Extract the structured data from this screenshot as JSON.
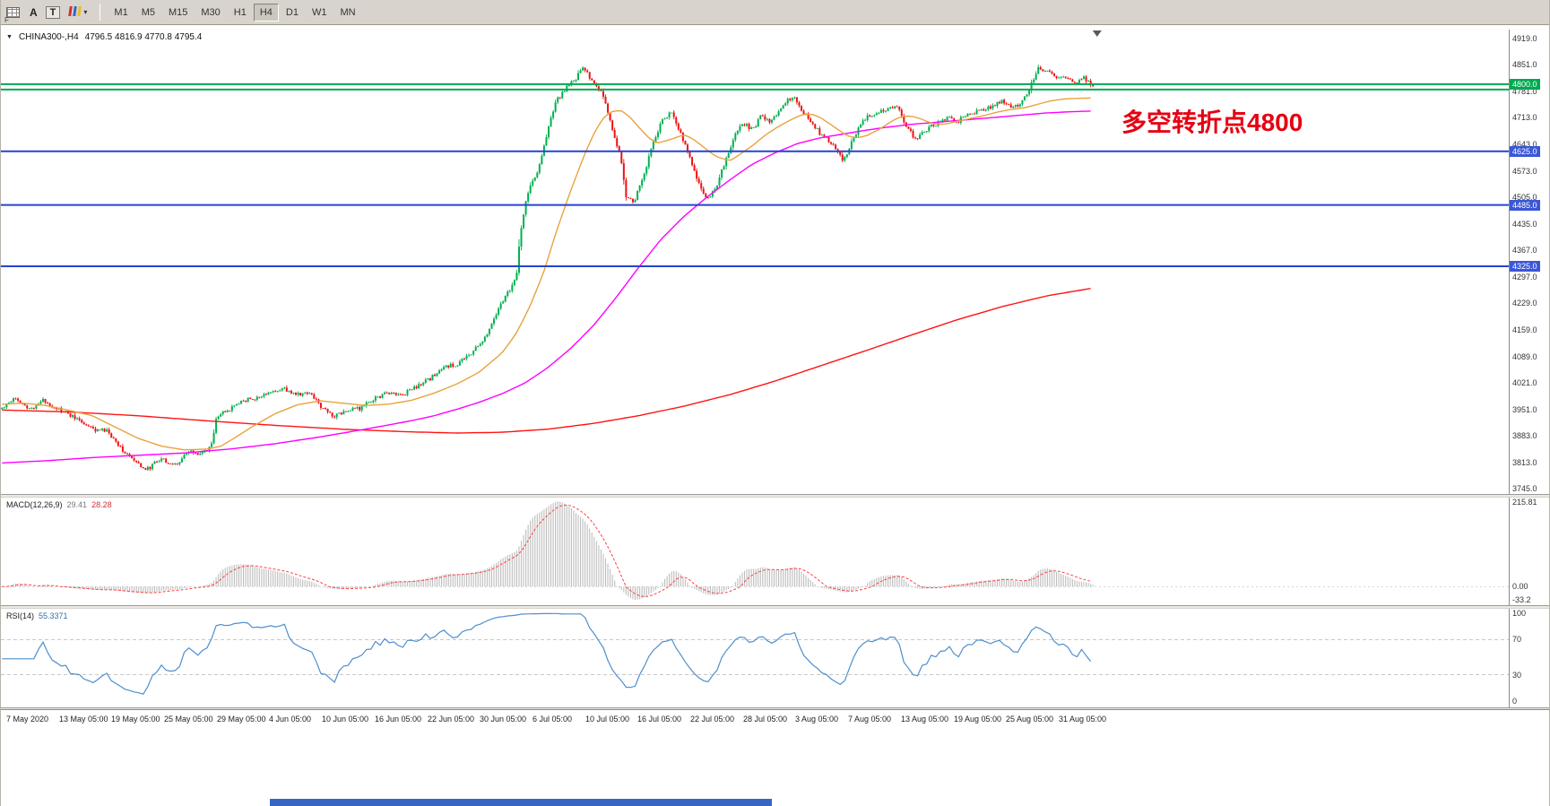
{
  "window": {
    "bottom_strip_color": "#3566c4"
  },
  "icons": {
    "chart_marker": "▼",
    "dropdown_caret": "▾"
  },
  "toolbar": {
    "f_label": "F",
    "a_label": "A",
    "t_label": "T",
    "timeframes": [
      "M1",
      "M5",
      "M15",
      "M30",
      "H1",
      "H4",
      "D1",
      "W1",
      "MN"
    ],
    "active_timeframe": "H4"
  },
  "main_chart": {
    "title": "CHINA300-,H4",
    "ohlc": "4796.5 4816.9 4770.8 4795.4",
    "annotation": "多空转折点4800",
    "annotation_color": "#e60012",
    "axis_min": 3745,
    "axis_max": 4919,
    "price_axis_labels": [
      "4919.0",
      "4851.0",
      "4781.0",
      "4713.0",
      "4643.0",
      "4573.0",
      "4505.0",
      "4435.0",
      "4367.0",
      "4297.0",
      "4229.0",
      "4159.0",
      "4089.0",
      "4021.0",
      "3951.0",
      "3883.0",
      "3813.0",
      "3745.0"
    ],
    "hlines": [
      {
        "price": 4800,
        "color": "#00a84f",
        "boxed": true,
        "label": "4800.0",
        "box_color": "#00a84f"
      },
      {
        "price": 4786,
        "color": "#00a84f",
        "boxed": false,
        "label": "",
        "box_color": ""
      },
      {
        "price": 4625,
        "color": "#2743d0",
        "boxed": true,
        "label": "4625.0",
        "box_color": "#3a57d6"
      },
      {
        "price": 4485,
        "color": "#2743d0",
        "boxed": true,
        "label": "4485.0",
        "box_color": "#3a57d6"
      },
      {
        "price": 4325,
        "color": "#2743d0",
        "boxed": true,
        "label": "4325.0",
        "box_color": "#3a57d6"
      }
    ]
  },
  "macd_panel": {
    "name": "MACD(12,26,9)",
    "value_main": "29.41",
    "value_signal": "28.28",
    "axis_labels": [
      "215.81",
      "0.00",
      "-33.2"
    ],
    "axis_max": 215.81,
    "axis_min": -33.2,
    "hist_color": "#bdbdbd",
    "signal_color": "#ff4040"
  },
  "rsi_panel": {
    "name": "RSI(14)",
    "value": "55.3371",
    "levels": [
      100,
      70,
      30,
      0
    ],
    "line_color": "#4d8fce"
  },
  "time_axis": {
    "first_fraction": 0.0035,
    "step_fraction": 0.0349,
    "labels": [
      "7 May 2020",
      "13 May 05:00",
      "19 May 05:00",
      "25 May 05:00",
      "29 May 05:00",
      "4 Jun 05:00",
      "10 Jun 05:00",
      "16 Jun 05:00",
      "22 Jun 05:00",
      "30 Jun 05:00",
      "6 Jul 05:00",
      "10 Jul 05:00",
      "16 Jul 05:00",
      "22 Jul 05:00",
      "28 Jul 05:00",
      "3 Aug 05:00",
      "7 Aug 05:00",
      "13 Aug 05:00",
      "19 Aug 05:00",
      "25 Aug 05:00",
      "31 Aug 05:00"
    ]
  },
  "chart_data": {
    "type": "candlestick",
    "symbol": "CHINA300-",
    "timeframe": "H4",
    "current_bar": {
      "open": 4796.5,
      "high": 4816.9,
      "low": 4770.8,
      "close": 4795.4
    },
    "ylim": [
      3745,
      4919
    ],
    "x_range": [
      "7 May 2020",
      "early Sep 2020"
    ],
    "bars_total": 480,
    "span_fraction": 0.725,
    "up_color": "#00b050",
    "down_color": "#ee1111",
    "close_path": [
      [
        0,
        3955
      ],
      [
        0.012,
        3985
      ],
      [
        0.025,
        3950
      ],
      [
        0.037,
        3975
      ],
      [
        0.05,
        3955
      ],
      [
        0.067,
        3930
      ],
      [
        0.083,
        3900
      ],
      [
        0.096,
        3895
      ],
      [
        0.108,
        3855
      ],
      [
        0.121,
        3815
      ],
      [
        0.133,
        3795
      ],
      [
        0.146,
        3825
      ],
      [
        0.158,
        3805
      ],
      [
        0.171,
        3840
      ],
      [
        0.183,
        3835
      ],
      [
        0.192,
        3858
      ],
      [
        0.197,
        3935
      ],
      [
        0.208,
        3950
      ],
      [
        0.221,
        3975
      ],
      [
        0.233,
        3980
      ],
      [
        0.246,
        3995
      ],
      [
        0.258,
        4005
      ],
      [
        0.271,
        3990
      ],
      [
        0.283,
        3995
      ],
      [
        0.292,
        3960
      ],
      [
        0.304,
        3935
      ],
      [
        0.317,
        3950
      ],
      [
        0.329,
        3955
      ],
      [
        0.342,
        3980
      ],
      [
        0.354,
        3995
      ],
      [
        0.367,
        3990
      ],
      [
        0.379,
        4010
      ],
      [
        0.392,
        4030
      ],
      [
        0.404,
        4060
      ],
      [
        0.417,
        4070
      ],
      [
        0.429,
        4095
      ],
      [
        0.437,
        4120
      ],
      [
        0.446,
        4155
      ],
      [
        0.454,
        4210
      ],
      [
        0.462,
        4250
      ],
      [
        0.471,
        4290
      ],
      [
        0.476,
        4430
      ],
      [
        0.483,
        4530
      ],
      [
        0.492,
        4580
      ],
      [
        0.5,
        4680
      ],
      [
        0.508,
        4755
      ],
      [
        0.517,
        4790
      ],
      [
        0.525,
        4810
      ],
      [
        0.533,
        4845
      ],
      [
        0.542,
        4800
      ],
      [
        0.55,
        4780
      ],
      [
        0.558,
        4700
      ],
      [
        0.567,
        4610
      ],
      [
        0.572,
        4510
      ],
      [
        0.579,
        4490
      ],
      [
        0.588,
        4560
      ],
      [
        0.596,
        4640
      ],
      [
        0.604,
        4700
      ],
      [
        0.613,
        4725
      ],
      [
        0.621,
        4680
      ],
      [
        0.629,
        4620
      ],
      [
        0.638,
        4545
      ],
      [
        0.646,
        4500
      ],
      [
        0.654,
        4525
      ],
      [
        0.663,
        4600
      ],
      [
        0.671,
        4660
      ],
      [
        0.679,
        4700
      ],
      [
        0.688,
        4680
      ],
      [
        0.696,
        4720
      ],
      [
        0.704,
        4700
      ],
      [
        0.717,
        4750
      ],
      [
        0.725,
        4770
      ],
      [
        0.733,
        4730
      ],
      [
        0.742,
        4700
      ],
      [
        0.75,
        4670
      ],
      [
        0.763,
        4640
      ],
      [
        0.771,
        4600
      ],
      [
        0.779,
        4650
      ],
      [
        0.788,
        4700
      ],
      [
        0.796,
        4720
      ],
      [
        0.808,
        4730
      ],
      [
        0.821,
        4740
      ],
      [
        0.829,
        4690
      ],
      [
        0.838,
        4655
      ],
      [
        0.846,
        4680
      ],
      [
        0.858,
        4700
      ],
      [
        0.867,
        4715
      ],
      [
        0.875,
        4700
      ],
      [
        0.883,
        4720
      ],
      [
        0.896,
        4730
      ],
      [
        0.908,
        4740
      ],
      [
        0.917,
        4760
      ],
      [
        0.925,
        4735
      ],
      [
        0.933,
        4750
      ],
      [
        0.942,
        4790
      ],
      [
        0.95,
        4840
      ],
      [
        0.958,
        4835
      ],
      [
        0.967,
        4810
      ],
      [
        0.975,
        4820
      ],
      [
        0.983,
        4800
      ],
      [
        0.992,
        4815
      ],
      [
        1,
        4795.4
      ]
    ],
    "ma_fast": {
      "color": "#e8a33d",
      "anchors": [
        [
          0,
          3965
        ],
        [
          0.02,
          3968
        ],
        [
          0.04,
          3962
        ],
        [
          0.06,
          3950
        ],
        [
          0.083,
          3935
        ],
        [
          0.104,
          3905
        ],
        [
          0.125,
          3876
        ],
        [
          0.146,
          3856
        ],
        [
          0.167,
          3846
        ],
        [
          0.187,
          3848
        ],
        [
          0.2,
          3855
        ],
        [
          0.212,
          3875
        ],
        [
          0.229,
          3906
        ],
        [
          0.25,
          3940
        ],
        [
          0.271,
          3964
        ],
        [
          0.292,
          3974
        ],
        [
          0.312,
          3968
        ],
        [
          0.333,
          3962
        ],
        [
          0.354,
          3965
        ],
        [
          0.375,
          3975
        ],
        [
          0.396,
          3994
        ],
        [
          0.417,
          4018
        ],
        [
          0.437,
          4048
        ],
        [
          0.458,
          4098
        ],
        [
          0.471,
          4148
        ],
        [
          0.483,
          4215
        ],
        [
          0.496,
          4305
        ],
        [
          0.508,
          4415
        ],
        [
          0.521,
          4520
        ],
        [
          0.533,
          4610
        ],
        [
          0.542,
          4668
        ],
        [
          0.55,
          4708
        ],
        [
          0.558,
          4728
        ],
        [
          0.567,
          4732
        ],
        [
          0.575,
          4716
        ],
        [
          0.583,
          4690
        ],
        [
          0.592,
          4662
        ],
        [
          0.6,
          4646
        ],
        [
          0.612,
          4655
        ],
        [
          0.625,
          4668
        ],
        [
          0.633,
          4658
        ],
        [
          0.642,
          4638
        ],
        [
          0.654,
          4612
        ],
        [
          0.667,
          4600
        ],
        [
          0.675,
          4614
        ],
        [
          0.688,
          4640
        ],
        [
          0.7,
          4668
        ],
        [
          0.712,
          4690
        ],
        [
          0.725,
          4710
        ],
        [
          0.733,
          4720
        ],
        [
          0.742,
          4722
        ],
        [
          0.75,
          4713
        ],
        [
          0.758,
          4698
        ],
        [
          0.767,
          4680
        ],
        [
          0.775,
          4665
        ],
        [
          0.783,
          4660
        ],
        [
          0.792,
          4665
        ],
        [
          0.804,
          4682
        ],
        [
          0.817,
          4706
        ],
        [
          0.825,
          4716
        ],
        [
          0.833,
          4717
        ],
        [
          0.842,
          4710
        ],
        [
          0.85,
          4700
        ],
        [
          0.858,
          4695
        ],
        [
          0.867,
          4697
        ],
        [
          0.875,
          4703
        ],
        [
          0.887,
          4710
        ],
        [
          0.9,
          4718
        ],
        [
          0.912,
          4727
        ],
        [
          0.925,
          4734
        ],
        [
          0.937,
          4738
        ],
        [
          0.95,
          4748
        ],
        [
          0.962,
          4757
        ],
        [
          0.975,
          4762
        ],
        [
          0.987,
          4763
        ],
        [
          1,
          4764
        ]
      ]
    },
    "ma_mid": {
      "color": "#ff00ff",
      "anchors": [
        [
          0,
          3812
        ],
        [
          0.042,
          3818
        ],
        [
          0.083,
          3826
        ],
        [
          0.125,
          3832
        ],
        [
          0.167,
          3838
        ],
        [
          0.208,
          3848
        ],
        [
          0.25,
          3862
        ],
        [
          0.292,
          3880
        ],
        [
          0.333,
          3900
        ],
        [
          0.375,
          3922
        ],
        [
          0.396,
          3935
        ],
        [
          0.417,
          3952
        ],
        [
          0.437,
          3970
        ],
        [
          0.458,
          3992
        ],
        [
          0.479,
          4020
        ],
        [
          0.5,
          4060
        ],
        [
          0.521,
          4110
        ],
        [
          0.542,
          4170
        ],
        [
          0.562,
          4240
        ],
        [
          0.583,
          4320
        ],
        [
          0.604,
          4395
        ],
        [
          0.625,
          4455
        ],
        [
          0.646,
          4505
        ],
        [
          0.667,
          4550
        ],
        [
          0.687,
          4590
        ],
        [
          0.708,
          4620
        ],
        [
          0.729,
          4645
        ],
        [
          0.75,
          4660
        ],
        [
          0.771,
          4670
        ],
        [
          0.792,
          4680
        ],
        [
          0.812,
          4688
        ],
        [
          0.833,
          4695
        ],
        [
          0.854,
          4700
        ],
        [
          0.875,
          4705
        ],
        [
          0.896,
          4710
        ],
        [
          0.917,
          4715
        ],
        [
          0.937,
          4720
        ],
        [
          0.958,
          4725
        ],
        [
          0.979,
          4728
        ],
        [
          1,
          4730
        ]
      ]
    },
    "ma_slow": {
      "color": "#ff1414",
      "anchors": [
        [
          0,
          3950
        ],
        [
          0.062,
          3945
        ],
        [
          0.125,
          3935
        ],
        [
          0.187,
          3922
        ],
        [
          0.25,
          3910
        ],
        [
          0.312,
          3900
        ],
        [
          0.375,
          3893
        ],
        [
          0.417,
          3890
        ],
        [
          0.458,
          3892
        ],
        [
          0.5,
          3900
        ],
        [
          0.542,
          3915
        ],
        [
          0.583,
          3935
        ],
        [
          0.625,
          3960
        ],
        [
          0.667,
          3990
        ],
        [
          0.708,
          4025
        ],
        [
          0.75,
          4065
        ],
        [
          0.792,
          4105
        ],
        [
          0.833,
          4145
        ],
        [
          0.875,
          4185
        ],
        [
          0.917,
          4220
        ],
        [
          0.958,
          4248
        ],
        [
          1,
          4268
        ]
      ]
    },
    "indicators": {
      "macd": [
        12,
        26,
        9
      ],
      "rsi": 14
    }
  }
}
